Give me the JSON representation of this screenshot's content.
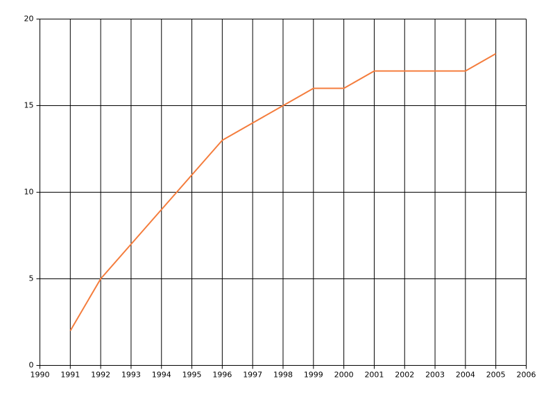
{
  "chart_data": {
    "type": "line",
    "x": [
      1991,
      1992,
      1993,
      1994,
      1995,
      1996,
      1997,
      1998,
      1999,
      2000,
      2001,
      2002,
      2003,
      2004,
      2005
    ],
    "series": [
      {
        "color": "#f47c3c",
        "values": [
          2,
          5,
          7,
          9,
          11,
          13,
          14,
          15,
          16,
          16,
          17,
          17,
          17,
          17,
          18
        ]
      }
    ],
    "xlim": [
      1990,
      2006
    ],
    "xticks": [
      1990,
      1991,
      1992,
      1993,
      1994,
      1995,
      1996,
      1997,
      1998,
      1999,
      2000,
      2001,
      2002,
      2003,
      2004,
      2005,
      2006
    ],
    "ylim": [
      0,
      20
    ],
    "yticks": [
      0,
      5,
      10,
      15,
      20
    ],
    "grid": true
  }
}
